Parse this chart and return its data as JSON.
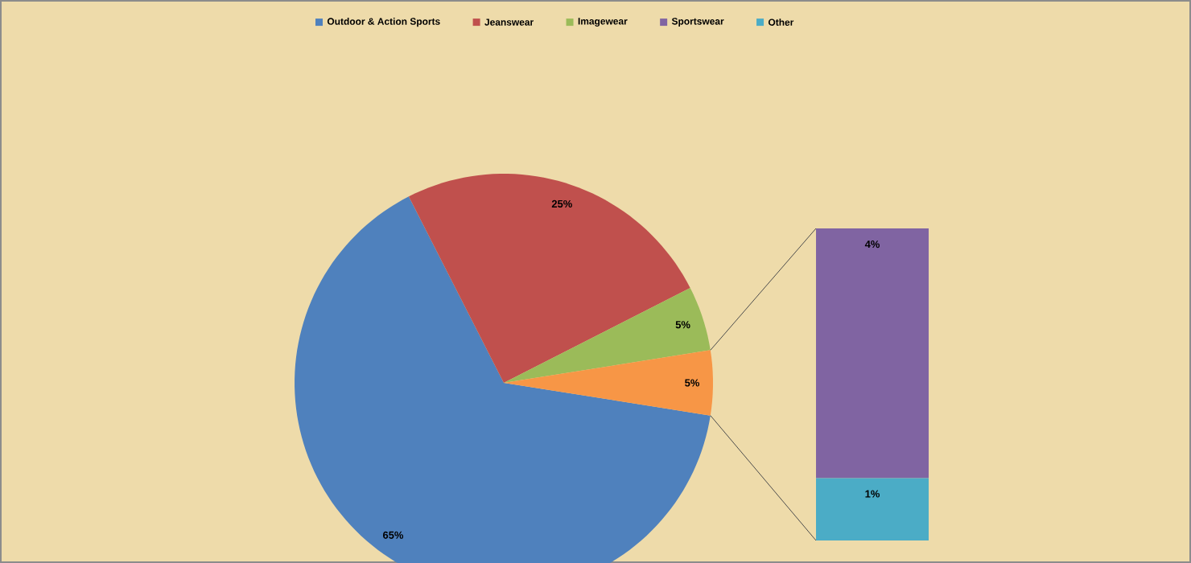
{
  "chart_data": [
    {
      "type": "pie",
      "categories": [
        "Outdoor & Action Sports",
        "Jeanswear",
        "Imagewear",
        null
      ],
      "values": [
        65,
        25,
        5,
        5
      ],
      "colors": [
        "#4f81bd",
        "#c0504d",
        "#9bbb59",
        "#f79646"
      ],
      "value_labels": [
        "65%",
        "25%",
        "5%",
        "5%"
      ],
      "legend": "top"
    },
    {
      "type": "bar",
      "stacked": true,
      "categories": [
        null
      ],
      "legend": "top",
      "series": [
        {
          "name": "Other",
          "color": "#4bacc6",
          "values": [
            1
          ],
          "value_labels": [
            "1%"
          ]
        },
        {
          "name": "Sportswear",
          "color": "#8064a2",
          "values": [
            4
          ],
          "value_labels": [
            "4%"
          ]
        }
      ]
    }
  ]
}
